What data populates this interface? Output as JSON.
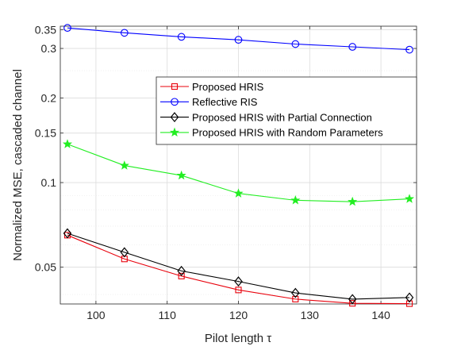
{
  "chart_data": {
    "type": "line",
    "title": "",
    "xlabel": "Pilot length τ",
    "ylabel": "Normalized MSE, cascaded channel",
    "xlim": [
      95,
      145
    ],
    "ylim": [
      0.037,
      0.36
    ],
    "yscale": "log",
    "grid": true,
    "legend_position": "top-right",
    "x_ticks": [
      100,
      110,
      120,
      130,
      140
    ],
    "x_tick_labels": [
      "100",
      "110",
      "120",
      "130",
      "140"
    ],
    "y_ticks": [
      0.05,
      0.1,
      0.15,
      0.2,
      0.3,
      0.35
    ],
    "y_tick_labels": [
      "0.05",
      "0.1",
      "0.15",
      "0.2",
      "0.3",
      "0.35"
    ],
    "x": [
      96,
      104,
      112,
      120,
      128,
      136,
      144
    ],
    "series": [
      {
        "name": "Proposed HRIS",
        "color": "#e8000b",
        "marker": "square",
        "values": [
          0.065,
          0.0535,
          0.0465,
          0.0415,
          0.0385,
          0.0372,
          0.0371
        ]
      },
      {
        "name": "Reflective RIS",
        "color": "#0000ff",
        "marker": "circle",
        "values": [
          0.355,
          0.341,
          0.33,
          0.322,
          0.311,
          0.304,
          0.297
        ]
      },
      {
        "name": "Proposed HRIS with Partial Connection",
        "color": "#000000",
        "marker": "diamond",
        "values": [
          0.066,
          0.0565,
          0.0485,
          0.0445,
          0.0405,
          0.0385,
          0.039
        ]
      },
      {
        "name": "Proposed HRIS with Random Parameters",
        "color": "#22ee22",
        "marker": "star",
        "values": [
          0.137,
          0.115,
          0.106,
          0.0915,
          0.0865,
          0.0855,
          0.0875
        ]
      }
    ]
  }
}
